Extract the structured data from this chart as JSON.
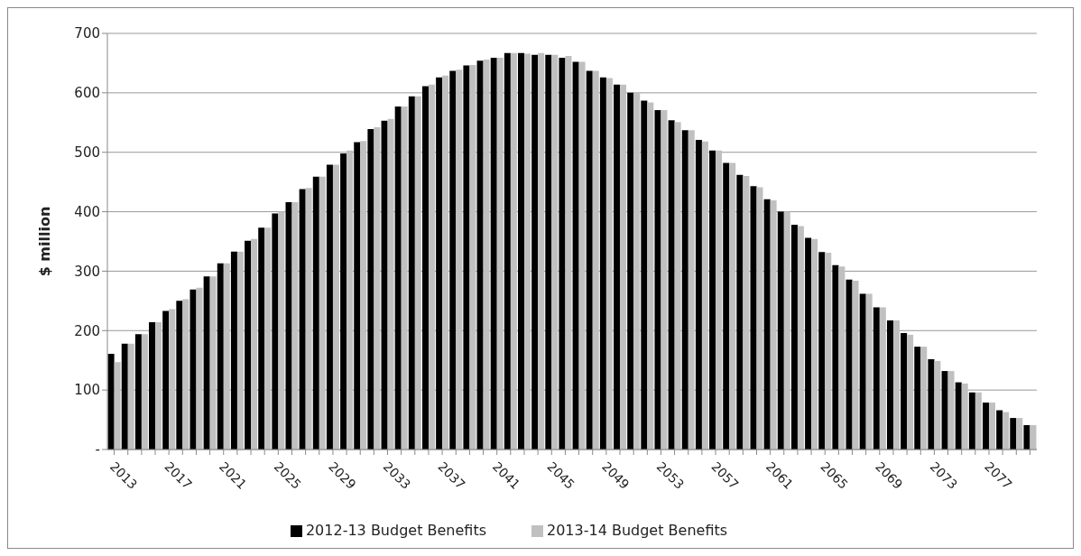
{
  "chart_data": {
    "type": "bar",
    "ylabel": "$ million",
    "categories": [
      "2013",
      null,
      null,
      null,
      "2017",
      null,
      null,
      null,
      "2021",
      null,
      null,
      null,
      "2025",
      null,
      null,
      null,
      "2029",
      null,
      null,
      null,
      "2033",
      null,
      null,
      null,
      "2037",
      null,
      null,
      null,
      "2041",
      null,
      null,
      null,
      "2045",
      null,
      null,
      null,
      "2049",
      null,
      null,
      null,
      "2053",
      null,
      null,
      null,
      "2057",
      null,
      null,
      null,
      "2061",
      null,
      null,
      null,
      "2065",
      null,
      null,
      null,
      "2069",
      null,
      null,
      null,
      "2073",
      null,
      null,
      null,
      "2077",
      null,
      null,
      null
    ],
    "series": [
      {
        "name": "2012-13 Budget Benefits",
        "color": "#000000",
        "values": [
          161,
          178,
          194,
          214,
          233,
          250,
          269,
          291,
          313,
          333,
          351,
          373,
          397,
          416,
          438,
          459,
          479,
          498,
          517,
          539,
          553,
          577,
          594,
          611,
          626,
          637,
          646,
          654,
          659,
          667,
          667,
          664,
          664,
          659,
          652,
          637,
          626,
          614,
          600,
          587,
          571,
          554,
          537,
          521,
          503,
          482,
          462,
          443,
          421,
          400,
          378,
          356,
          332,
          310,
          286,
          262,
          239,
          217,
          196,
          173,
          152,
          132,
          113,
          96,
          79,
          66,
          53,
          41
        ]
      },
      {
        "name": "2013-14 Budget Benefits",
        "color": "#c0c0c0",
        "values": [
          147,
          178,
          194,
          214,
          236,
          253,
          272,
          291,
          313,
          333,
          354,
          373,
          400,
          416,
          440,
          459,
          479,
          503,
          519,
          542,
          556,
          577,
          594,
          614,
          629,
          639,
          647,
          656,
          659,
          667,
          666,
          667,
          664,
          662,
          652,
          637,
          625,
          614,
          600,
          584,
          571,
          551,
          537,
          518,
          503,
          482,
          460,
          441,
          419,
          400,
          376,
          354,
          331,
          308,
          284,
          262,
          239,
          217,
          193,
          173,
          149,
          132,
          111,
          96,
          79,
          63,
          53,
          41
        ]
      }
    ],
    "ylim": [
      0,
      700
    ],
    "yticks": [
      {
        "value": 0,
        "label": "-"
      },
      100,
      200,
      300,
      400,
      500,
      600,
      700
    ],
    "grid": "y",
    "legend": "bottom"
  }
}
